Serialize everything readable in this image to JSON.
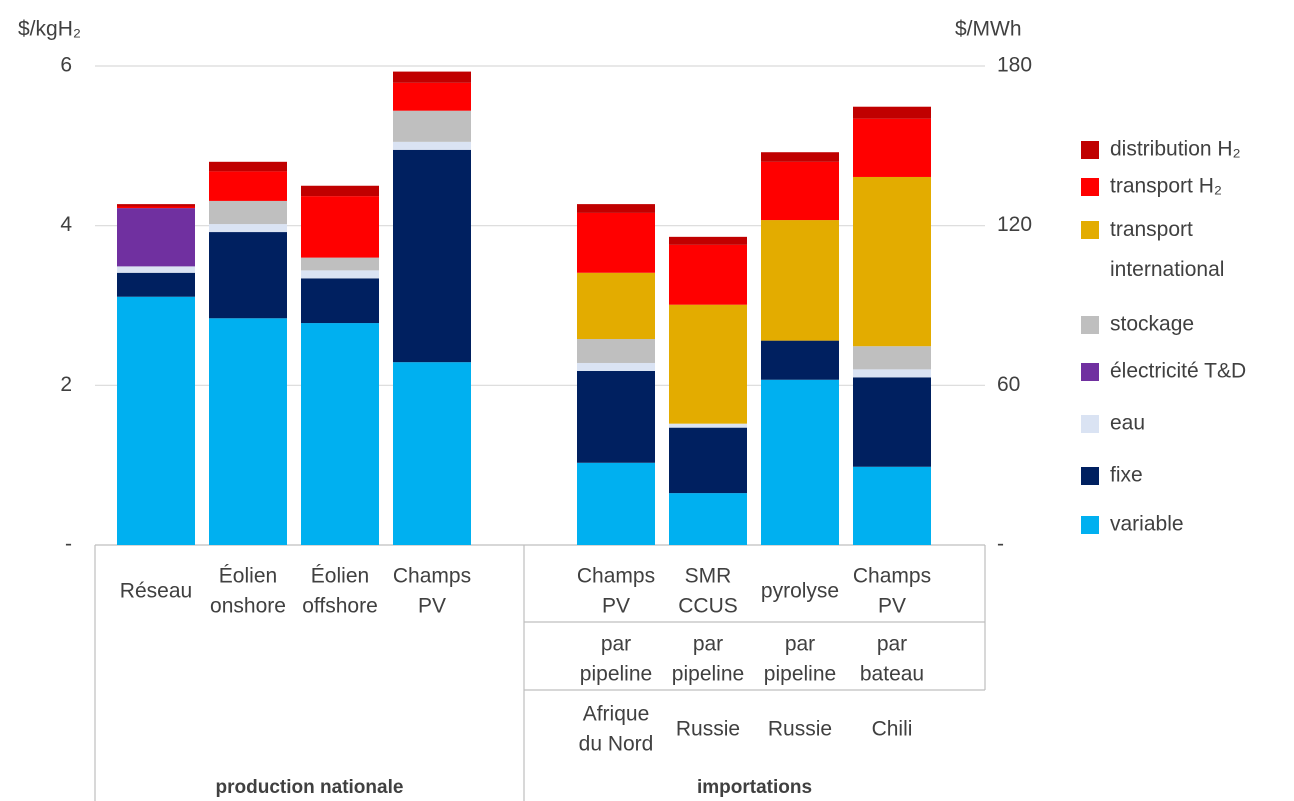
{
  "chart_data": {
    "type": "stacked_bar",
    "ylabel": "$/kgH₂",
    "y2label": "$/MWh",
    "ylim": [
      0,
      6
    ],
    "yticks": [
      {
        "value": 0,
        "label": "-"
      },
      2,
      4,
      6
    ],
    "y2lim": [
      0,
      180
    ],
    "y2ticks": [
      {
        "value": 0,
        "label": "-"
      },
      60,
      120,
      180
    ],
    "grid": true,
    "legend": "right",
    "categories": [
      [
        "Réseau"
      ],
      [
        "Éolien",
        "onshore"
      ],
      [
        "Éolien",
        "offshore"
      ],
      [
        "Champs",
        "PV"
      ],
      null,
      [
        "Champs",
        "PV"
      ],
      [
        "SMR",
        "CCUS"
      ],
      [
        "pyrolyse"
      ],
      [
        "Champs",
        "PV"
      ]
    ],
    "transport_modes": [
      null,
      null,
      null,
      null,
      null,
      [
        "par",
        "pipeline"
      ],
      [
        "par",
        "pipeline"
      ],
      [
        "par",
        "pipeline"
      ],
      [
        "par",
        "bateau"
      ]
    ],
    "origins": [
      null,
      null,
      null,
      null,
      null,
      [
        "Afrique",
        "du Nord"
      ],
      [
        "Russie"
      ],
      [
        "Russie"
      ],
      [
        "Chili"
      ]
    ],
    "groups": [
      "production nationale",
      "importations"
    ],
    "series": [
      {
        "name": "variable",
        "color": "#00b0f0",
        "values": [
          3.11,
          2.84,
          2.78,
          2.29,
          null,
          1.03,
          0.65,
          2.07,
          0.98
        ]
      },
      {
        "name": "fixe",
        "color": "#002060",
        "values": [
          0.3,
          1.08,
          0.56,
          2.66,
          null,
          1.15,
          0.82,
          0.49,
          1.12
        ]
      },
      {
        "name": "eau",
        "color": "#dae3f3",
        "values": [
          0.08,
          0.1,
          0.1,
          0.1,
          null,
          0.1,
          0.05,
          0,
          0.1
        ]
      },
      {
        "name": "électricité T&D",
        "color": "#7030a0",
        "values": [
          0.73,
          0,
          0,
          0,
          null,
          0,
          0,
          0,
          0
        ]
      },
      {
        "name": "stockage",
        "color": "#bfbfbf",
        "values": [
          0,
          0.29,
          0.16,
          0.39,
          null,
          0.3,
          0,
          0,
          0.29
        ]
      },
      {
        "name": "transport international",
        "color": "#e3ac00",
        "values": [
          0,
          0,
          0,
          0,
          null,
          0.83,
          1.49,
          1.51,
          2.12
        ]
      },
      {
        "name": "transport H₂",
        "color": "#ff0000",
        "values": [
          0.02,
          0.37,
          0.77,
          0.35,
          null,
          0.75,
          0.75,
          0.73,
          0.73
        ]
      },
      {
        "name": "distribution H₂",
        "color": "#c00000",
        "values": [
          0.03,
          0.12,
          0.13,
          0.14,
          null,
          0.11,
          0.1,
          0.12,
          0.15
        ]
      }
    ]
  }
}
